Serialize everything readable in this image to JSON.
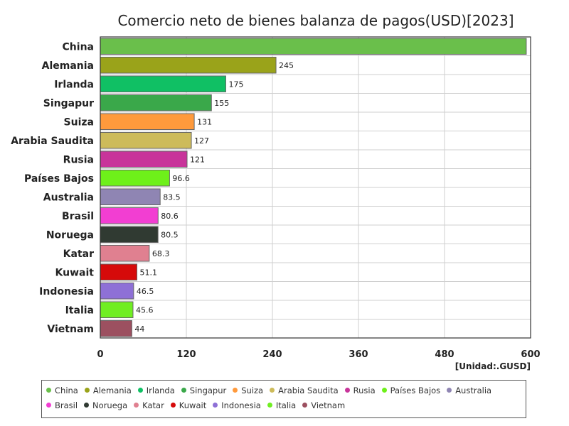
{
  "chart_data": {
    "type": "bar",
    "orientation": "horizontal",
    "title": "Comercio neto de bienes balanza de pagos(USD)[2023]",
    "unit_label": "[Unidad:.GUSD]",
    "xlim": [
      0,
      600
    ],
    "x_ticks": [
      "0",
      "120",
      "240",
      "360",
      "480",
      "600"
    ],
    "grid": true,
    "legend_position": "bottom",
    "categories": [
      "China",
      "Alemania",
      "Irlanda",
      "Singapur",
      "Suiza",
      "Arabia Saudita",
      "Rusia",
      "Países Bajos",
      "Australia",
      "Brasil",
      "Noruega",
      "Katar",
      "Kuwait",
      "Indonesia",
      "Italia",
      "Vietnam"
    ],
    "values": [
      594,
      245,
      175,
      155,
      131,
      127,
      121,
      96.6,
      83.5,
      80.6,
      80.5,
      68.3,
      51.1,
      46.5,
      45.6,
      44
    ],
    "value_labels": [
      "",
      "245",
      "175",
      "155",
      "131",
      "127",
      "121",
      "96.6",
      "83.5",
      "80.6",
      "80.5",
      "68.3",
      "51.1",
      "46.5",
      "45.6",
      "44"
    ],
    "colors": [
      "#6abf4b",
      "#9aa31a",
      "#10c064",
      "#3aa84a",
      "#ff9a3c",
      "#cdbb5a",
      "#c8349a",
      "#6ef01a",
      "#8f85b3",
      "#f23ed2",
      "#303a32",
      "#e08090",
      "#d60a0a",
      "#8e70d6",
      "#70ee22",
      "#9c5060"
    ],
    "legend": [
      "China",
      "Alemania",
      "Irlanda",
      "Singapur",
      "Suiza",
      "Arabia Saudita",
      "Rusia",
      "Países Bajos",
      "Australia",
      "Brasil",
      "Noruega",
      "Katar",
      "Kuwait",
      "Indonesia",
      "Italia",
      "Vietnam"
    ]
  }
}
